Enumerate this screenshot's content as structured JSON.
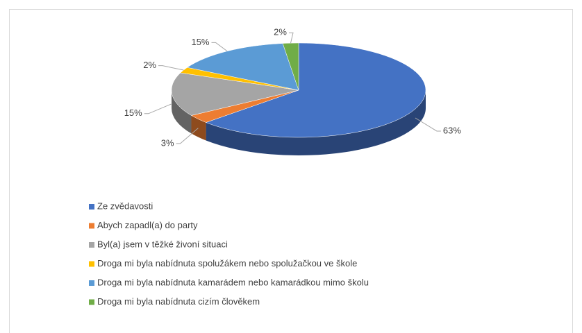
{
  "chart_data": {
    "type": "pie",
    "categories": [
      "Ze zvědavosti",
      "Abych zapadl(a) do party",
      "Byl(a) jsem v těžké živoní situaci",
      "Droga mi byla nabídnuta spolužákem nebo spolužačkou ve škole",
      "Droga mi byla nabídnuta kamarádem nebo kamarádkou mimo školu",
      "Droga mi byla nabídnuta cizím člověkem"
    ],
    "values": [
      63,
      3,
      15,
      2,
      15,
      2
    ],
    "value_labels": [
      "63%",
      "3%",
      "15%",
      "2%",
      "15%",
      "2%"
    ],
    "colors": [
      "#4472c4",
      "#ed7d31",
      "#a5a5a5",
      "#ffc000",
      "#5b9bd5",
      "#70ad47"
    ],
    "legend": "bottom-left"
  }
}
